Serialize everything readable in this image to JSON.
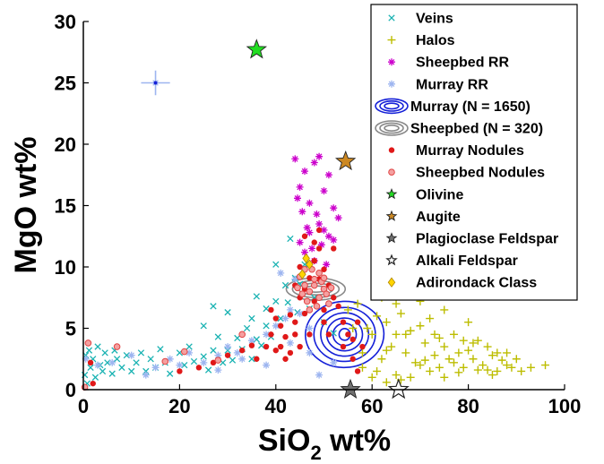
{
  "chart_data": {
    "type": "scatter",
    "title": "",
    "xlabel_main": "SiO",
    "xlabel_sub": "2",
    "xlabel_unit": " wt%",
    "ylabel": "MgO wt%",
    "xlim": [
      0,
      100
    ],
    "ylim": [
      0,
      30
    ],
    "xticks": [
      0,
      20,
      40,
      60,
      80,
      100
    ],
    "yticks": [
      0,
      5,
      10,
      15,
      20,
      25,
      30
    ],
    "grid": false,
    "legend_position": "top-right",
    "series": [
      {
        "name": "Veins",
        "marker": "x",
        "color": "#19B2B2",
        "points": [
          [
            0.3,
            1.2
          ],
          [
            0.5,
            2.8
          ],
          [
            0.8,
            0.5
          ],
          [
            1.2,
            3.2
          ],
          [
            1.5,
            1.8
          ],
          [
            2,
            2.5
          ],
          [
            2.5,
            1
          ],
          [
            3,
            3.5
          ],
          [
            3.5,
            2
          ],
          [
            4,
            1.5
          ],
          [
            4.5,
            3
          ],
          [
            5,
            2.2
          ],
          [
            6,
            1.3
          ],
          [
            6.5,
            3.2
          ],
          [
            7,
            2.5
          ],
          [
            8,
            1.8
          ],
          [
            9,
            2.8
          ],
          [
            10,
            1.5
          ],
          [
            11,
            2.2
          ],
          [
            12,
            3
          ],
          [
            13,
            1.5
          ],
          [
            14,
            2.5
          ],
          [
            15,
            1.8
          ],
          [
            16,
            3.3
          ],
          [
            17,
            2.2
          ],
          [
            18,
            1.3
          ],
          [
            20,
            3
          ],
          [
            21,
            2
          ],
          [
            22,
            3.5
          ],
          [
            23,
            2.3
          ],
          [
            25,
            2.7
          ],
          [
            26,
            1.6
          ],
          [
            27,
            3.2
          ],
          [
            28,
            4.3
          ],
          [
            29,
            2.2
          ],
          [
            30,
            3.2
          ],
          [
            31,
            2.4
          ],
          [
            32,
            4.2
          ],
          [
            33,
            3.3
          ],
          [
            34,
            5
          ],
          [
            35,
            2.5
          ],
          [
            36,
            4.1
          ],
          [
            37,
            3.6
          ],
          [
            38,
            5.2
          ],
          [
            39,
            4.3
          ],
          [
            40,
            7.2
          ],
          [
            41,
            5.8
          ],
          [
            42,
            8.5
          ],
          [
            42.5,
            7.1
          ],
          [
            43,
            12.3
          ],
          [
            44,
            9.1
          ],
          [
            44.5,
            6.3
          ],
          [
            45,
            8.6
          ],
          [
            46,
            10.2
          ],
          [
            47,
            6.6
          ],
          [
            48,
            7.5
          ],
          [
            50,
            5.5
          ],
          [
            52,
            4.6
          ],
          [
            35,
            5.8
          ],
          [
            25,
            5.2
          ],
          [
            30,
            6.3
          ],
          [
            27,
            6.8
          ],
          [
            36,
            7.6
          ],
          [
            38,
            6.6
          ],
          [
            40,
            10.2
          ]
        ]
      },
      {
        "name": "Halos",
        "marker": "+",
        "color": "#BDBD00",
        "points": [
          [
            58,
            3
          ],
          [
            59,
            5
          ],
          [
            60,
            4.5
          ],
          [
            61,
            6
          ],
          [
            62,
            2.5
          ],
          [
            63,
            5.5
          ],
          [
            64,
            3.5
          ],
          [
            65,
            4.5
          ],
          [
            66,
            6.2
          ],
          [
            67,
            3
          ],
          [
            68,
            4.8
          ],
          [
            69,
            2.2
          ],
          [
            70,
            5.2
          ],
          [
            71,
            3.8
          ],
          [
            72,
            5.8
          ],
          [
            73,
            2.8
          ],
          [
            74,
            4.2
          ],
          [
            75,
            3.5
          ],
          [
            76,
            2.5
          ],
          [
            77,
            4.5
          ],
          [
            78,
            3
          ],
          [
            79,
            1.8
          ],
          [
            80,
            3.2
          ],
          [
            81,
            2.5
          ],
          [
            82,
            4
          ],
          [
            83,
            2
          ],
          [
            84,
            3.5
          ],
          [
            85,
            2.8
          ],
          [
            86,
            1.5
          ],
          [
            87,
            2.4
          ],
          [
            88,
            3
          ],
          [
            89,
            1.8
          ],
          [
            90,
            2.5
          ],
          [
            91,
            1.5
          ],
          [
            93,
            1.8
          ],
          [
            96,
            2
          ],
          [
            60,
            1
          ],
          [
            63,
            0.6
          ],
          [
            65,
            1.2
          ],
          [
            68,
            1
          ],
          [
            72,
            1.5
          ],
          [
            75,
            1
          ],
          [
            78,
            1.4
          ],
          [
            55,
            6.5
          ],
          [
            56,
            5
          ],
          [
            57,
            7
          ],
          [
            62,
            7.5
          ],
          [
            65,
            7
          ],
          [
            70,
            7.2
          ],
          [
            75,
            6.5
          ],
          [
            80,
            5.5
          ],
          [
            58,
            1.8
          ],
          [
            61,
            1.5
          ],
          [
            66,
            0.8
          ],
          [
            70,
            2
          ],
          [
            74,
            1.8
          ],
          [
            77,
            2.2
          ],
          [
            82,
            1.6
          ],
          [
            85,
            1.2
          ],
          [
            88,
            2
          ],
          [
            63,
            3.2
          ],
          [
            67,
            4.5
          ],
          [
            71,
            2.4
          ],
          [
            73,
            4.5
          ],
          [
            79,
            4
          ],
          [
            81,
            3.8
          ],
          [
            84,
            1.6
          ],
          [
            86,
            3
          ]
        ]
      },
      {
        "name": "Sheepbed RR",
        "marker": "star6",
        "color": "#CC00CC",
        "points": [
          [
            44,
            18.8
          ],
          [
            45,
            16.5
          ],
          [
            46,
            17.8
          ],
          [
            47,
            15.2
          ],
          [
            48,
            18.5
          ],
          [
            49,
            19
          ],
          [
            50,
            16.2
          ],
          [
            51,
            17.5
          ],
          [
            52,
            14.8
          ],
          [
            49,
            13.5
          ],
          [
            47,
            12.8
          ],
          [
            45.5,
            14.5
          ],
          [
            46.5,
            13.2
          ],
          [
            48.5,
            14.3
          ],
          [
            50,
            13
          ],
          [
            51,
            12.5
          ],
          [
            53,
            14
          ],
          [
            44.5,
            15.6
          ],
          [
            49.5,
            11.8
          ],
          [
            47.5,
            11.5
          ],
          [
            52,
            12.2
          ],
          [
            48,
            10.5
          ],
          [
            50.5,
            10.2
          ],
          [
            46,
            11.2
          ],
          [
            45,
            12
          ]
        ]
      },
      {
        "name": "Murray RR",
        "marker": "star6",
        "color": "#9DB5F0",
        "points": [
          [
            15,
            25
          ],
          [
            0.5,
            2.5
          ],
          [
            3,
            2
          ],
          [
            6,
            2.2
          ],
          [
            10,
            2.8
          ],
          [
            18,
            2.5
          ],
          [
            22,
            3
          ],
          [
            25,
            2.2
          ],
          [
            28,
            2.8
          ],
          [
            30,
            3.5
          ],
          [
            32,
            3
          ],
          [
            35,
            4
          ],
          [
            38,
            4.5
          ],
          [
            40,
            5.2
          ],
          [
            42,
            5.8
          ],
          [
            43,
            6.5
          ],
          [
            45,
            6.2
          ],
          [
            47,
            3
          ],
          [
            49,
            1.2
          ],
          [
            52,
            2.2
          ],
          [
            41,
            9.5
          ],
          [
            44,
            9
          ],
          [
            38,
            2
          ],
          [
            33,
            2.5
          ],
          [
            28,
            1.6
          ],
          [
            20,
            2
          ],
          [
            15,
            1.8
          ],
          [
            13,
            1.2
          ],
          [
            43,
            3.8
          ],
          [
            47,
            5
          ]
        ]
      },
      {
        "name": "Murray Nodules",
        "marker": "dot",
        "color": "#E01818",
        "points": [
          [
            1.5,
            2.2
          ],
          [
            2,
            0.5
          ],
          [
            20,
            1.5
          ],
          [
            24,
            1.8
          ],
          [
            27,
            2.2
          ],
          [
            30,
            2.8
          ],
          [
            33,
            3.2
          ],
          [
            36,
            2.5
          ],
          [
            39,
            4.5
          ],
          [
            40,
            3.2
          ],
          [
            41,
            5.2
          ],
          [
            42,
            4.3
          ],
          [
            43,
            6.1
          ],
          [
            44,
            5.5
          ],
          [
            45,
            7.5
          ],
          [
            46,
            8.2
          ],
          [
            47,
            9.1
          ],
          [
            48,
            10.5
          ],
          [
            49,
            11.5
          ],
          [
            50,
            9.8
          ],
          [
            51,
            8.5
          ],
          [
            52,
            7.5
          ],
          [
            53,
            6.8
          ],
          [
            54,
            5.5
          ],
          [
            55,
            4.5
          ],
          [
            56,
            4.1
          ],
          [
            57,
            5.5
          ],
          [
            58,
            3.5
          ],
          [
            49,
            13
          ],
          [
            48,
            12
          ],
          [
            46,
            12.5
          ],
          [
            44,
            4.5
          ],
          [
            42,
            2.5
          ],
          [
            46,
            6.2
          ],
          [
            48,
            7.2
          ],
          [
            50,
            5.5
          ],
          [
            51,
            4.5
          ],
          [
            47,
            4.5
          ],
          [
            45,
            3.5
          ],
          [
            43,
            3
          ],
          [
            41,
            3.5
          ],
          [
            40,
            5.8
          ],
          [
            39,
            6.5
          ],
          [
            38,
            3.5
          ],
          [
            35,
            3.6
          ],
          [
            54,
            3.5
          ],
          [
            56,
            2.5
          ],
          [
            57,
            1.5
          ],
          [
            49,
            9
          ],
          [
            52,
            11.5
          ],
          [
            45,
            10
          ],
          [
            44,
            8.5
          ],
          [
            50,
            6.5
          ]
        ]
      },
      {
        "name": "Sheepbed Nodules",
        "marker": "ring",
        "color": "#F08080",
        "points": [
          [
            45,
            9.2
          ],
          [
            46,
            8.5
          ],
          [
            47,
            8
          ],
          [
            48,
            9
          ],
          [
            49,
            7.5
          ],
          [
            50,
            8.2
          ],
          [
            51,
            7
          ],
          [
            46.5,
            7.2
          ],
          [
            47.5,
            9.8
          ],
          [
            48.5,
            6.8
          ],
          [
            49.5,
            8.8
          ],
          [
            50.5,
            7.8
          ],
          [
            45.5,
            7.8
          ],
          [
            47,
            6.5
          ],
          [
            48,
            8.5
          ],
          [
            49,
            9.5
          ],
          [
            46,
            9.8
          ],
          [
            50,
            9.1
          ],
          [
            51.5,
            8.3
          ],
          [
            44.5,
            8.3
          ],
          [
            1,
            3.8
          ],
          [
            7,
            3.5
          ],
          [
            0.3,
            0.2
          ],
          [
            17,
            2.3
          ],
          [
            21,
            3.1
          ],
          [
            28,
            2.4
          ],
          [
            33,
            4.5
          ]
        ]
      },
      {
        "name": "Olivine",
        "marker": "star5",
        "color": "#22DD22",
        "size": 22,
        "points": [
          [
            36,
            27.7
          ]
        ]
      },
      {
        "name": "Augite",
        "marker": "star5",
        "color": "#CC8822",
        "size": 22,
        "points": [
          [
            54.5,
            18.6
          ]
        ]
      },
      {
        "name": "Plagioclase Feldspar",
        "marker": "star5",
        "color": "#707070",
        "size": 22,
        "points": [
          [
            55.5,
            0
          ]
        ]
      },
      {
        "name": "Alkali Feldspar",
        "marker": "star5-open",
        "color": "#505050",
        "size": 22,
        "points": [
          [
            65.5,
            0
          ]
        ]
      },
      {
        "name": "Adirondack Class",
        "marker": "diamond",
        "color": "#FFD400",
        "points": [
          [
            45.5,
            9.4
          ],
          [
            46.3,
            10.7
          ],
          [
            47,
            10.2
          ]
        ]
      }
    ],
    "contours": [
      {
        "name": "Murray (N = 1650)",
        "color": "#1520D8",
        "center": [
          54.3,
          4.5
        ],
        "rx_data": [
          2.2,
          4.2,
          6.2,
          8.2,
          10.2,
          12.5
        ],
        "ry_data": [
          0.45,
          0.95,
          1.45,
          1.95,
          2.5,
          3.2
        ],
        "rotation_deg": 78
      },
      {
        "name": "Sheepbed (N = 320)",
        "color": "#888888",
        "center": [
          48.3,
          8.2
        ],
        "rx_data": [
          1.2,
          2.2,
          3.2,
          4.2
        ],
        "ry_data": [
          0.9,
          1.4,
          1.9,
          2.4
        ],
        "rotation_deg": 80
      }
    ],
    "error_bars": [
      {
        "x": 15,
        "y": 25,
        "xerr": 3,
        "yerr": 1,
        "color": "#9DB5F0"
      }
    ],
    "legend": [
      {
        "label": "Veins",
        "marker": "x",
        "color": "#19B2B2"
      },
      {
        "label": "Halos",
        "marker": "+",
        "color": "#BDBD00"
      },
      {
        "label": "Sheepbed RR",
        "marker": "star6",
        "color": "#CC00CC"
      },
      {
        "label": "Murray RR",
        "marker": "star6",
        "color": "#9DB5F0"
      },
      {
        "label": "Murray (N = 1650)",
        "marker": "contour",
        "color": "#1520D8"
      },
      {
        "label": "Sheepbed (N = 320)",
        "marker": "contour",
        "color": "#888888"
      },
      {
        "label": "Murray Nodules",
        "marker": "dot",
        "color": "#E01818"
      },
      {
        "label": "Sheepbed Nodules",
        "marker": "ring",
        "color": "#F08080"
      },
      {
        "label": "Olivine",
        "marker": "star5",
        "color": "#22DD22"
      },
      {
        "label": "Augite",
        "marker": "star5",
        "color": "#CC8822"
      },
      {
        "label": "Plagioclase Feldspar",
        "marker": "star5",
        "color": "#707070"
      },
      {
        "label": "Alkali Feldspar",
        "marker": "star5-open",
        "color": "#505050"
      },
      {
        "label": "Adirondack Class",
        "marker": "diamond",
        "color": "#FFD400"
      }
    ]
  }
}
